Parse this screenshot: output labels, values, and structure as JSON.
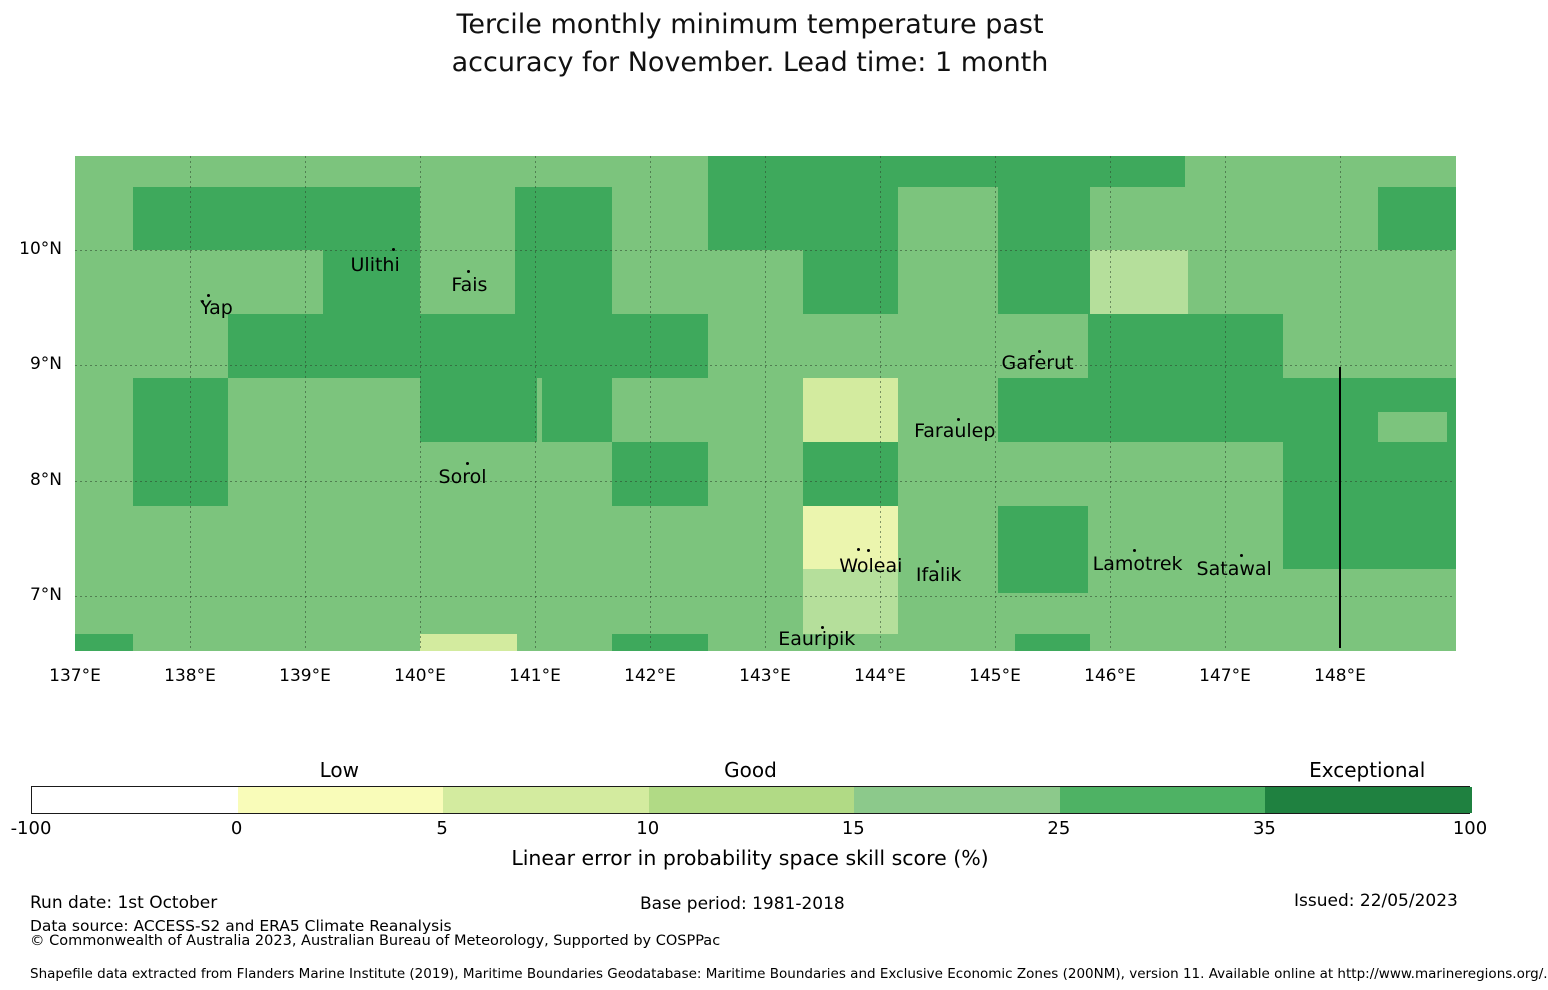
{
  "title": {
    "line1": "Tercile monthly minimum temperature past",
    "line2": "accuracy for November. Lead time: 1 month"
  },
  "chart_data": {
    "type": "heatmap",
    "title": "Tercile monthly minimum temperature past accuracy for November. Lead time: 1 month",
    "map_bounds": {
      "lon_min": 137.0,
      "lon_max": 149.0,
      "lat_min": 6.53,
      "lat_max": 10.81
    },
    "grid": {
      "lon_lines": [
        138,
        139,
        140,
        141,
        142,
        143,
        144,
        145,
        146,
        147,
        148
      ],
      "lat_lines": [
        10,
        9,
        8,
        7
      ],
      "style": "dashed"
    },
    "x_axis": {
      "ticks": [
        {
          "label": "137°E",
          "lon": 137
        },
        {
          "label": "138°E",
          "lon": 138
        },
        {
          "label": "139°E",
          "lon": 139
        },
        {
          "label": "140°E",
          "lon": 140
        },
        {
          "label": "141°E",
          "lon": 141
        },
        {
          "label": "142°E",
          "lon": 142
        },
        {
          "label": "143°E",
          "lon": 143
        },
        {
          "label": "144°E",
          "lon": 144
        },
        {
          "label": "145°E",
          "lon": 145
        },
        {
          "label": "146°E",
          "lon": 146
        },
        {
          "label": "147°E",
          "lon": 147
        },
        {
          "label": "148°E",
          "lon": 148
        }
      ]
    },
    "y_axis": {
      "ticks": [
        {
          "label": "10°N",
          "lat": 10
        },
        {
          "label": "9°N",
          "lat": 9
        },
        {
          "label": "8°N",
          "lat": 8
        },
        {
          "label": "7°N",
          "lat": 7
        }
      ]
    },
    "palette": {
      "M": {
        "color": "#7cc47d",
        "skill_range_pct": "15-25"
      },
      "D": {
        "color": "#3ea95c",
        "skill_range_pct": "25-35"
      },
      "L": {
        "color": "#b5df9b",
        "skill_range_pct": "10-15"
      },
      "L2": {
        "color": "#d3eb9f",
        "skill_range_pct": "5-10"
      },
      "P": {
        "color": "#ebf5ae",
        "skill_range_pct": "0-5"
      }
    },
    "rows": [
      {
        "lat_top": 10.81,
        "lat_bot": 10.54,
        "spans": [
          [
            137.0,
            142.5,
            "M"
          ],
          [
            142.5,
            146.65,
            "D"
          ],
          [
            146.65,
            149.0,
            "M"
          ]
        ]
      },
      {
        "lat_top": 10.54,
        "lat_bot": 10.0,
        "spans": [
          [
            137.0,
            137.5,
            "M"
          ],
          [
            137.5,
            140.0,
            "D"
          ],
          [
            140.0,
            140.83,
            "M"
          ],
          [
            140.83,
            141.67,
            "D"
          ],
          [
            141.67,
            142.5,
            "M"
          ],
          [
            142.5,
            144.16,
            "D"
          ],
          [
            144.16,
            145.03,
            "M"
          ],
          [
            145.03,
            145.83,
            "D"
          ],
          [
            145.83,
            148.33,
            "M"
          ],
          [
            148.33,
            149.0,
            "D"
          ]
        ]
      },
      {
        "lat_top": 10.0,
        "lat_bot": 9.44,
        "spans": [
          [
            137.0,
            139.16,
            "M"
          ],
          [
            139.16,
            140.0,
            "D"
          ],
          [
            140.0,
            140.83,
            "M"
          ],
          [
            140.83,
            141.67,
            "D"
          ],
          [
            141.67,
            143.33,
            "M"
          ],
          [
            143.33,
            144.16,
            "D"
          ],
          [
            144.16,
            145.03,
            "M"
          ],
          [
            145.03,
            145.83,
            "D"
          ],
          [
            145.83,
            146.68,
            "L"
          ],
          [
            146.68,
            149.0,
            "M"
          ]
        ]
      },
      {
        "lat_top": 9.44,
        "lat_bot": 8.89,
        "spans": [
          [
            137.0,
            138.33,
            "M"
          ],
          [
            138.33,
            142.5,
            "D"
          ],
          [
            142.5,
            145.81,
            "M"
          ],
          [
            145.81,
            147.5,
            "D"
          ],
          [
            147.5,
            149.0,
            "M"
          ]
        ]
      },
      {
        "lat_top": 8.89,
        "lat_bot": 8.59,
        "spans": [
          [
            137.0,
            137.5,
            "M"
          ],
          [
            137.5,
            138.33,
            "D"
          ],
          [
            138.33,
            140.0,
            "M"
          ],
          [
            140.0,
            141.02,
            "D"
          ],
          [
            141.02,
            141.06,
            "M"
          ],
          [
            141.06,
            141.67,
            "D"
          ],
          [
            141.67,
            143.33,
            "M"
          ],
          [
            143.33,
            144.16,
            "L2"
          ],
          [
            144.16,
            145.03,
            "M"
          ],
          [
            145.03,
            149.0,
            "D"
          ]
        ]
      },
      {
        "lat_top": 8.59,
        "lat_bot": 8.33,
        "spans": [
          [
            137.0,
            137.5,
            "M"
          ],
          [
            137.5,
            138.33,
            "D"
          ],
          [
            138.33,
            140.0,
            "M"
          ],
          [
            140.0,
            141.02,
            "D"
          ],
          [
            141.02,
            141.06,
            "M"
          ],
          [
            141.06,
            141.67,
            "D"
          ],
          [
            141.67,
            143.33,
            "M"
          ],
          [
            143.33,
            144.16,
            "L2"
          ],
          [
            144.16,
            145.03,
            "M"
          ],
          [
            145.03,
            148.33,
            "D"
          ],
          [
            148.33,
            148.93,
            "M"
          ],
          [
            148.93,
            149.0,
            "D"
          ]
        ]
      },
      {
        "lat_top": 8.33,
        "lat_bot": 7.78,
        "spans": [
          [
            137.0,
            137.5,
            "M"
          ],
          [
            137.5,
            138.33,
            "D"
          ],
          [
            138.33,
            141.67,
            "M"
          ],
          [
            141.67,
            142.5,
            "D"
          ],
          [
            142.5,
            143.33,
            "M"
          ],
          [
            143.33,
            144.16,
            "D"
          ],
          [
            144.16,
            147.5,
            "M"
          ],
          [
            147.5,
            149.0,
            "D"
          ]
        ]
      },
      {
        "lat_top": 7.78,
        "lat_bot": 7.23,
        "spans": [
          [
            137.0,
            143.33,
            "M"
          ],
          [
            143.33,
            144.16,
            "P"
          ],
          [
            144.16,
            145.03,
            "M"
          ],
          [
            145.03,
            145.81,
            "D"
          ],
          [
            145.81,
            147.5,
            "M"
          ],
          [
            147.5,
            149.0,
            "D"
          ]
        ]
      },
      {
        "lat_top": 7.23,
        "lat_bot": 7.03,
        "spans": [
          [
            137.0,
            143.33,
            "M"
          ],
          [
            143.33,
            144.16,
            "L"
          ],
          [
            144.16,
            145.03,
            "M"
          ],
          [
            145.03,
            145.81,
            "D"
          ],
          [
            145.81,
            149.0,
            "M"
          ]
        ]
      },
      {
        "lat_top": 7.03,
        "lat_bot": 6.67,
        "spans": [
          [
            137.0,
            143.33,
            "M"
          ],
          [
            143.33,
            144.16,
            "L"
          ],
          [
            144.16,
            149.0,
            "M"
          ]
        ]
      },
      {
        "lat_top": 6.67,
        "lat_bot": 6.53,
        "spans": [
          [
            137.0,
            137.5,
            "D"
          ],
          [
            137.5,
            140.0,
            "M"
          ],
          [
            140.0,
            140.84,
            "L2"
          ],
          [
            140.84,
            141.67,
            "M"
          ],
          [
            141.67,
            142.5,
            "D"
          ],
          [
            142.5,
            145.17,
            "M"
          ],
          [
            145.17,
            145.83,
            "D"
          ],
          [
            145.83,
            149.0,
            "M"
          ]
        ]
      }
    ],
    "islands": [
      {
        "name": "Yap",
        "label_lon": 138.23,
        "label_lat": 9.49,
        "dots": [
          [
            138.11,
            9.55
          ],
          [
            138.16,
            9.6
          ]
        ]
      },
      {
        "name": "Ulithi",
        "label_lon": 139.61,
        "label_lat": 9.87,
        "dots": [
          [
            139.77,
            10.0
          ]
        ]
      },
      {
        "name": "Fais",
        "label_lon": 140.43,
        "label_lat": 9.69,
        "dots": [
          [
            140.42,
            9.81
          ]
        ]
      },
      {
        "name": "Sorol",
        "label_lon": 140.37,
        "label_lat": 8.03,
        "dots": [
          [
            140.41,
            8.15
          ]
        ]
      },
      {
        "name": "Gaferut",
        "label_lon": 145.37,
        "label_lat": 9.02,
        "dots": [
          [
            145.39,
            9.12
          ]
        ]
      },
      {
        "name": "Faraulep",
        "label_lon": 144.65,
        "label_lat": 8.43,
        "dots": [
          [
            144.68,
            8.53
          ]
        ]
      },
      {
        "name": "Woleai",
        "label_lon": 143.92,
        "label_lat": 7.26,
        "dots": [
          [
            143.81,
            7.4
          ],
          [
            143.9,
            7.39
          ]
        ]
      },
      {
        "name": "Ifalik",
        "label_lon": 144.51,
        "label_lat": 7.18,
        "dots": [
          [
            144.5,
            7.3
          ]
        ]
      },
      {
        "name": "Lamotrek",
        "label_lon": 146.24,
        "label_lat": 7.28,
        "dots": [
          [
            146.21,
            7.39
          ]
        ]
      },
      {
        "name": "Satawal",
        "label_lon": 147.08,
        "label_lat": 7.23,
        "dots": [
          [
            147.14,
            7.35
          ]
        ]
      },
      {
        "name": "Eauripik",
        "label_lon": 143.45,
        "label_lat": 6.63,
        "dots": [
          [
            143.5,
            6.73
          ]
        ]
      }
    ],
    "eez_boundary_line": {
      "lon": 148.0,
      "lat_top": 8.98,
      "lat_bot": 6.55,
      "color": "#000000"
    },
    "colorbar": {
      "boundaries": [
        -100,
        0,
        5,
        10,
        15,
        25,
        35,
        100
      ],
      "segment_colors": [
        "#ffffff",
        "#f9fcb9",
        "#d3eb9f",
        "#b1da85",
        "#8cc98b",
        "#4eb264",
        "#1f8140"
      ],
      "class_labels": [
        {
          "label": "Low",
          "segment_index": 1
        },
        {
          "label": "Good",
          "segment_index": 3
        },
        {
          "label": "Exceptional",
          "segment_index": 6
        }
      ],
      "caption": "Linear error in probability space skill score (%)"
    }
  },
  "footer": {
    "run_date": "Run date: 1st October",
    "base_period": "Base period: 1981-2018",
    "issued": "Issued: 22/05/2023",
    "data_source": "Data source: ACCESS-S2 and ERA5 Climate Reanalysis",
    "copyright": "© Commonwealth of Australia 2023, Australian Bureau of Meteorology, Supported by COSPPac",
    "shapefile_note": "Shapefile data extracted from Flanders Marine Institute (2019), Maritime Boundaries Geodatabase: Maritime Boundaries and Exclusive Economic Zones (200NM), version 11. Available online at http://www.marineregions.org/."
  }
}
